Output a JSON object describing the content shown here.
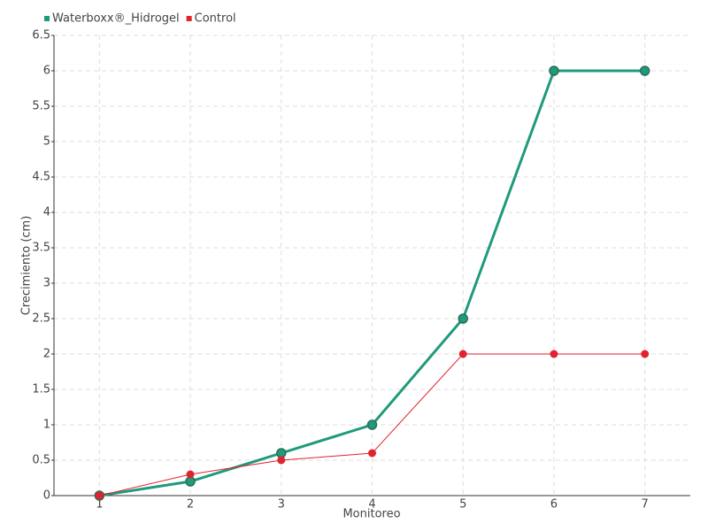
{
  "chart_data": {
    "type": "line",
    "x_label": "Monitoreo",
    "y_label": "Crecimiento (cm)",
    "categories": [
      "1",
      "2",
      "3",
      "4",
      "5",
      "6",
      "7"
    ],
    "series": [
      {
        "name": "Waterboxx®_Hidrogel",
        "color": "#1f9a7c",
        "values": [
          0,
          0.2,
          0.6,
          1,
          2.5,
          6,
          6
        ]
      },
      {
        "name": "Control",
        "color": "#e2222f",
        "values": [
          0,
          0.3,
          0.5,
          0.6,
          2,
          2,
          2
        ]
      }
    ],
    "ylim": [
      0,
      6.5
    ],
    "yticks": [
      0,
      0.5,
      1,
      1.5,
      2,
      2.5,
      3,
      3.5,
      4,
      4.5,
      5,
      5.5,
      6,
      6.5
    ],
    "grid": true,
    "legend": "top-left"
  }
}
